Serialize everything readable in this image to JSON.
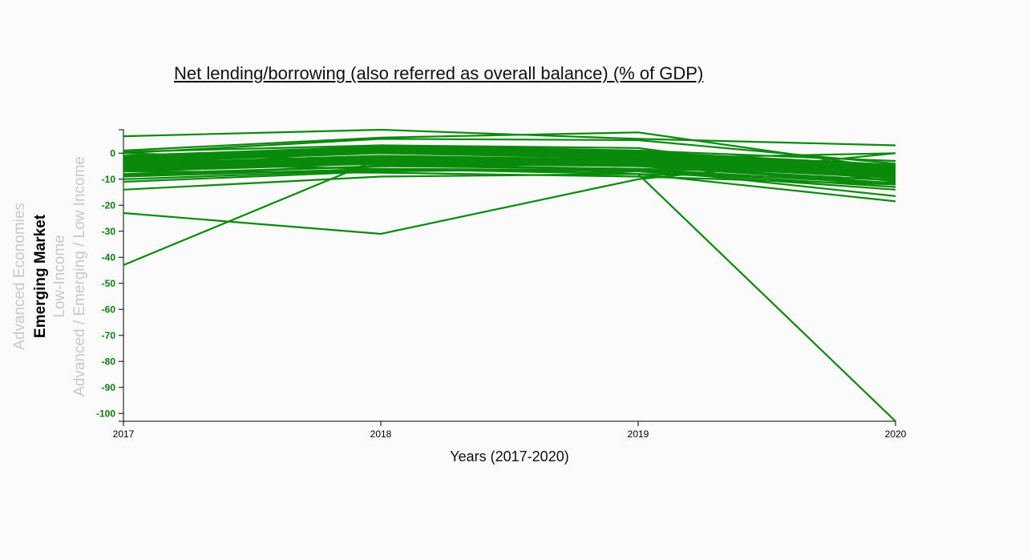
{
  "title": "Net lending/borrowing (also referred as overall balance) (% of GDP)",
  "y_options": [
    {
      "label": "Advanced Economies",
      "active": false
    },
    {
      "label": "Emerging Market",
      "active": true
    },
    {
      "label": "Low-Income",
      "active": false
    },
    {
      "label": "Advanced / Emerging / Low Income",
      "active": false
    }
  ],
  "colors": {
    "line": "#0a8a0a",
    "ytick": "#0b7f0b",
    "axis": "#000000"
  },
  "chart_data": {
    "type": "line",
    "title": "Net lending/borrowing (also referred as overall balance) (% of GDP)",
    "xlabel": "Years (2017-2020)",
    "ylabel": "Emerging Market",
    "x": [
      2017,
      2018,
      2019,
      2020
    ],
    "x_tick_labels": [
      "2017",
      "2018",
      "2019",
      "2020"
    ],
    "y_ticks": [
      0,
      -10,
      -20,
      -30,
      -40,
      -50,
      -60,
      -70,
      -80,
      -90,
      -100
    ],
    "ylim": [
      -103,
      9
    ],
    "grid": false,
    "series": [
      {
        "values": [
          6.5,
          9,
          5.5,
          3
        ]
      },
      {
        "values": [
          1,
          6,
          8,
          -6
        ]
      },
      {
        "values": [
          0,
          5.5,
          5,
          -4
        ]
      },
      {
        "values": [
          -3,
          3,
          2,
          -11
        ]
      },
      {
        "values": [
          -23,
          -31,
          -10,
          0
        ]
      },
      {
        "values": [
          -43,
          -2,
          -8,
          -103
        ]
      },
      {
        "values": [
          -14,
          -9,
          -8,
          -18.5
        ]
      },
      {
        "values": [
          -11,
          -7,
          -6,
          -16.5
        ]
      },
      {
        "values": [
          -10,
          -6.5,
          -7,
          -14
        ]
      },
      {
        "values": [
          -9,
          -6,
          -6.5,
          -13
        ]
      },
      {
        "values": [
          -8,
          -5,
          -6,
          -12
        ]
      },
      {
        "values": [
          -7,
          -4,
          -5,
          -11.5
        ]
      },
      {
        "values": [
          -6.5,
          -3.5,
          -5,
          -10.5
        ]
      },
      {
        "values": [
          -6,
          -3,
          -4.5,
          -9.5
        ]
      },
      {
        "values": [
          -5.5,
          -2.5,
          -4,
          -9
        ]
      },
      {
        "values": [
          -5,
          -2,
          -3.5,
          -8.5
        ]
      },
      {
        "values": [
          -4.5,
          -1.5,
          -3,
          -8
        ]
      },
      {
        "values": [
          -4,
          -1,
          -2.5,
          -7.5
        ]
      },
      {
        "values": [
          -3.5,
          0,
          -2,
          -7
        ]
      },
      {
        "values": [
          -3,
          0.5,
          -1.5,
          -6.5
        ]
      },
      {
        "values": [
          -2.5,
          1,
          -1,
          -6
        ]
      },
      {
        "values": [
          -2,
          1.5,
          -0.5,
          -5.5
        ]
      },
      {
        "values": [
          -1.5,
          2,
          0,
          -5
        ]
      },
      {
        "values": [
          -1,
          2.5,
          0.5,
          -4.5
        ]
      },
      {
        "values": [
          0.5,
          3,
          1,
          -3
        ]
      },
      {
        "values": [
          -4,
          -6,
          -8,
          -10
        ]
      },
      {
        "values": [
          -7,
          -7.5,
          -9,
          -12
        ]
      },
      {
        "values": [
          -2,
          -4.5,
          -6,
          -8
        ]
      },
      {
        "values": [
          0,
          -3,
          -2,
          0
        ]
      },
      {
        "values": [
          -8.5,
          -5,
          -4,
          -7
        ]
      }
    ]
  }
}
